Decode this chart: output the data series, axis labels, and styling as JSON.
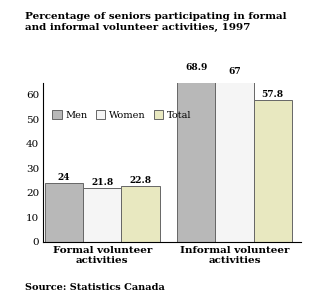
{
  "title": "Percentage of seniors participating in formal\nand informal volunteer activities, 1997",
  "categories": [
    "Formal volunteer\nactivities",
    "Informal volunteer\nactivities"
  ],
  "series": {
    "Men": [
      24,
      68.9
    ],
    "Women": [
      21.8,
      67
    ],
    "Total": [
      22.8,
      57.8
    ]
  },
  "colors": {
    "Men": "#b8b8b8",
    "Women": "#f5f5f5",
    "Total": "#e8e8c0"
  },
  "bar_edgecolor": "#666666",
  "ylim": [
    0,
    65
  ],
  "yticks": [
    0,
    10,
    20,
    30,
    40,
    50,
    60
  ],
  "source": "Source: Statistics Canada",
  "legend_labels": [
    "Men",
    "Women",
    "Total"
  ],
  "value_labels": {
    "Men": [
      "24",
      "68.9"
    ],
    "Women": [
      "21.8",
      "67"
    ],
    "Total": [
      "22.8",
      "57.8"
    ]
  },
  "background_color": "#ffffff",
  "title_fontsize": 7.5,
  "axis_fontsize": 7.5,
  "label_fontsize": 6.5,
  "source_fontsize": 7,
  "legend_fontsize": 7
}
